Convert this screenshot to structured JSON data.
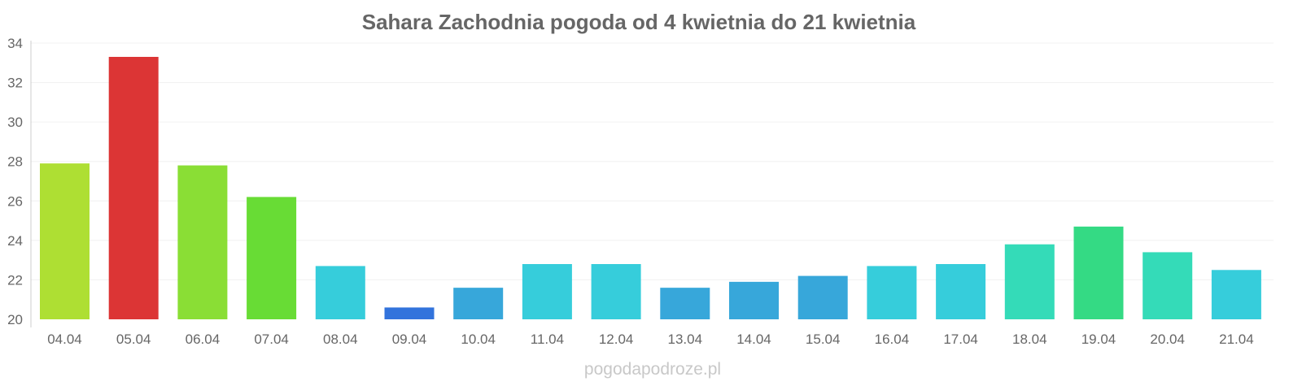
{
  "chart_data": {
    "type": "bar",
    "title": "Sahara Zachodnia pogoda od 4 kwietnia do 21 kwietnia",
    "xlabel": "",
    "ylabel": "",
    "ylim": [
      20,
      34
    ],
    "yticks": [
      20,
      22,
      24,
      26,
      28,
      30,
      32,
      34
    ],
    "grid": true,
    "categories": [
      "04.04",
      "05.04",
      "06.04",
      "07.04",
      "08.04",
      "09.04",
      "10.04",
      "11.04",
      "12.04",
      "13.04",
      "14.04",
      "15.04",
      "16.04",
      "17.04",
      "18.04",
      "19.04",
      "20.04",
      "21.04"
    ],
    "values": [
      27.9,
      33.3,
      27.8,
      26.2,
      22.7,
      20.6,
      21.6,
      22.8,
      22.8,
      21.6,
      21.9,
      22.2,
      22.7,
      22.8,
      23.8,
      24.7,
      23.4,
      22.5
    ],
    "colors": [
      "#aedf33",
      "#dc3535",
      "#8ade35",
      "#68dc35",
      "#36cddb",
      "#3273dc",
      "#37a7da",
      "#36cddb",
      "#36cddb",
      "#37a7da",
      "#37a7da",
      "#37a7da",
      "#36cddb",
      "#36cddb",
      "#34dbb8",
      "#34da84",
      "#34dbb8",
      "#36cddb"
    ]
  },
  "watermark": "pogodapodroze.pl"
}
